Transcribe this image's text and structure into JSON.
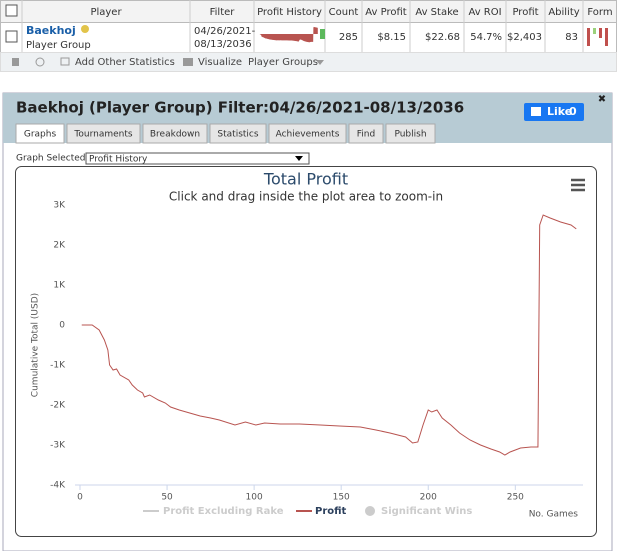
{
  "table": {
    "header": [
      "Player",
      "Filter",
      "Profit History",
      "Count",
      "Av Profit",
      "Av Stake",
      "Av ROI",
      "Profit",
      "Ability",
      "Form"
    ],
    "rows": [
      {
        "player": "Baekhoj",
        "group": "Player Group",
        "filter_lines": [
          "04/26/2021-",
          "08/13/2036"
        ],
        "count": 285,
        "av_profit": "$8.15",
        "av_stake": "$22.68",
        "av_roi": "54.7%",
        "profit": "$2,403",
        "ability": 83
      }
    ]
  },
  "toolbar": [
    "Add Other Statistics",
    "Visualize",
    "Player Groups"
  ],
  "panel": {
    "title": "Baekhoj (Player Group) Filter:04/26/2021-08/13/2036",
    "like": "Like",
    "like_count": 0,
    "tabs": [
      "Graphs",
      "Tournaments",
      "Breakdown",
      "Statistics",
      "Achievements",
      "Find",
      "Publish"
    ],
    "graph_selected_label": "Graph Selected:",
    "graph_selected": "Profit History"
  },
  "chart_data": {
    "type": "line",
    "title": "Total Profit",
    "subtitle": "Click and drag inside the plot area to zoom-in",
    "x_label": "No. Games",
    "y_label": "Cumulative Total (USD)",
    "x": [
      1,
      7,
      11,
      14,
      16,
      17,
      19,
      21,
      23,
      28,
      30,
      33,
      36,
      37,
      40,
      45,
      49,
      52,
      57,
      63,
      69,
      75,
      80,
      89,
      95,
      101,
      106,
      115,
      126,
      138,
      149,
      161,
      170,
      178,
      187,
      191,
      194,
      197,
      200,
      202,
      205,
      208,
      213,
      218,
      224,
      230,
      236,
      241,
      244,
      247,
      253,
      259,
      263,
      264,
      266,
      270,
      276,
      282,
      285
    ],
    "series": [
      {
        "name": "Profit",
        "color": "#b85450",
        "values": [
          0,
          0,
          -125,
          -375,
          -625,
          -1000,
          -1125,
          -1100,
          -1250,
          -1375,
          -1500,
          -1625,
          -1700,
          -1800,
          -1750,
          -1875,
          -1950,
          -2050,
          -2125,
          -2200,
          -2275,
          -2325,
          -2375,
          -2500,
          -2425,
          -2500,
          -2450,
          -2475,
          -2475,
          -2500,
          -2525,
          -2550,
          -2625,
          -2700,
          -2800,
          -2950,
          -2925,
          -2500,
          -2125,
          -2175,
          -2125,
          -2325,
          -2500,
          -2700,
          -2875,
          -3000,
          -3100,
          -3175,
          -3250,
          -3175,
          -3075,
          -3050,
          -3050,
          2500,
          2750,
          2675,
          2575,
          2500,
          2403
        ]
      }
    ],
    "hidden_legend": [
      "Profit Excluding Rake",
      "Significant Wins"
    ],
    "xlim": [
      0,
      286
    ],
    "xticks": [
      0,
      50,
      100,
      150,
      200,
      250
    ],
    "ylim": [
      -4000,
      3000
    ],
    "yticks": [
      {
        "value": -4000,
        "label": "-4K"
      },
      {
        "value": -3000,
        "label": "-3K"
      },
      {
        "value": -2000,
        "label": "-2K"
      },
      {
        "value": -1000,
        "label": "-1K"
      },
      0,
      {
        "value": 1000,
        "label": "1K"
      },
      {
        "value": 2000,
        "label": "2K"
      },
      {
        "value": 3000,
        "label": "3K"
      }
    ],
    "grid": false
  }
}
